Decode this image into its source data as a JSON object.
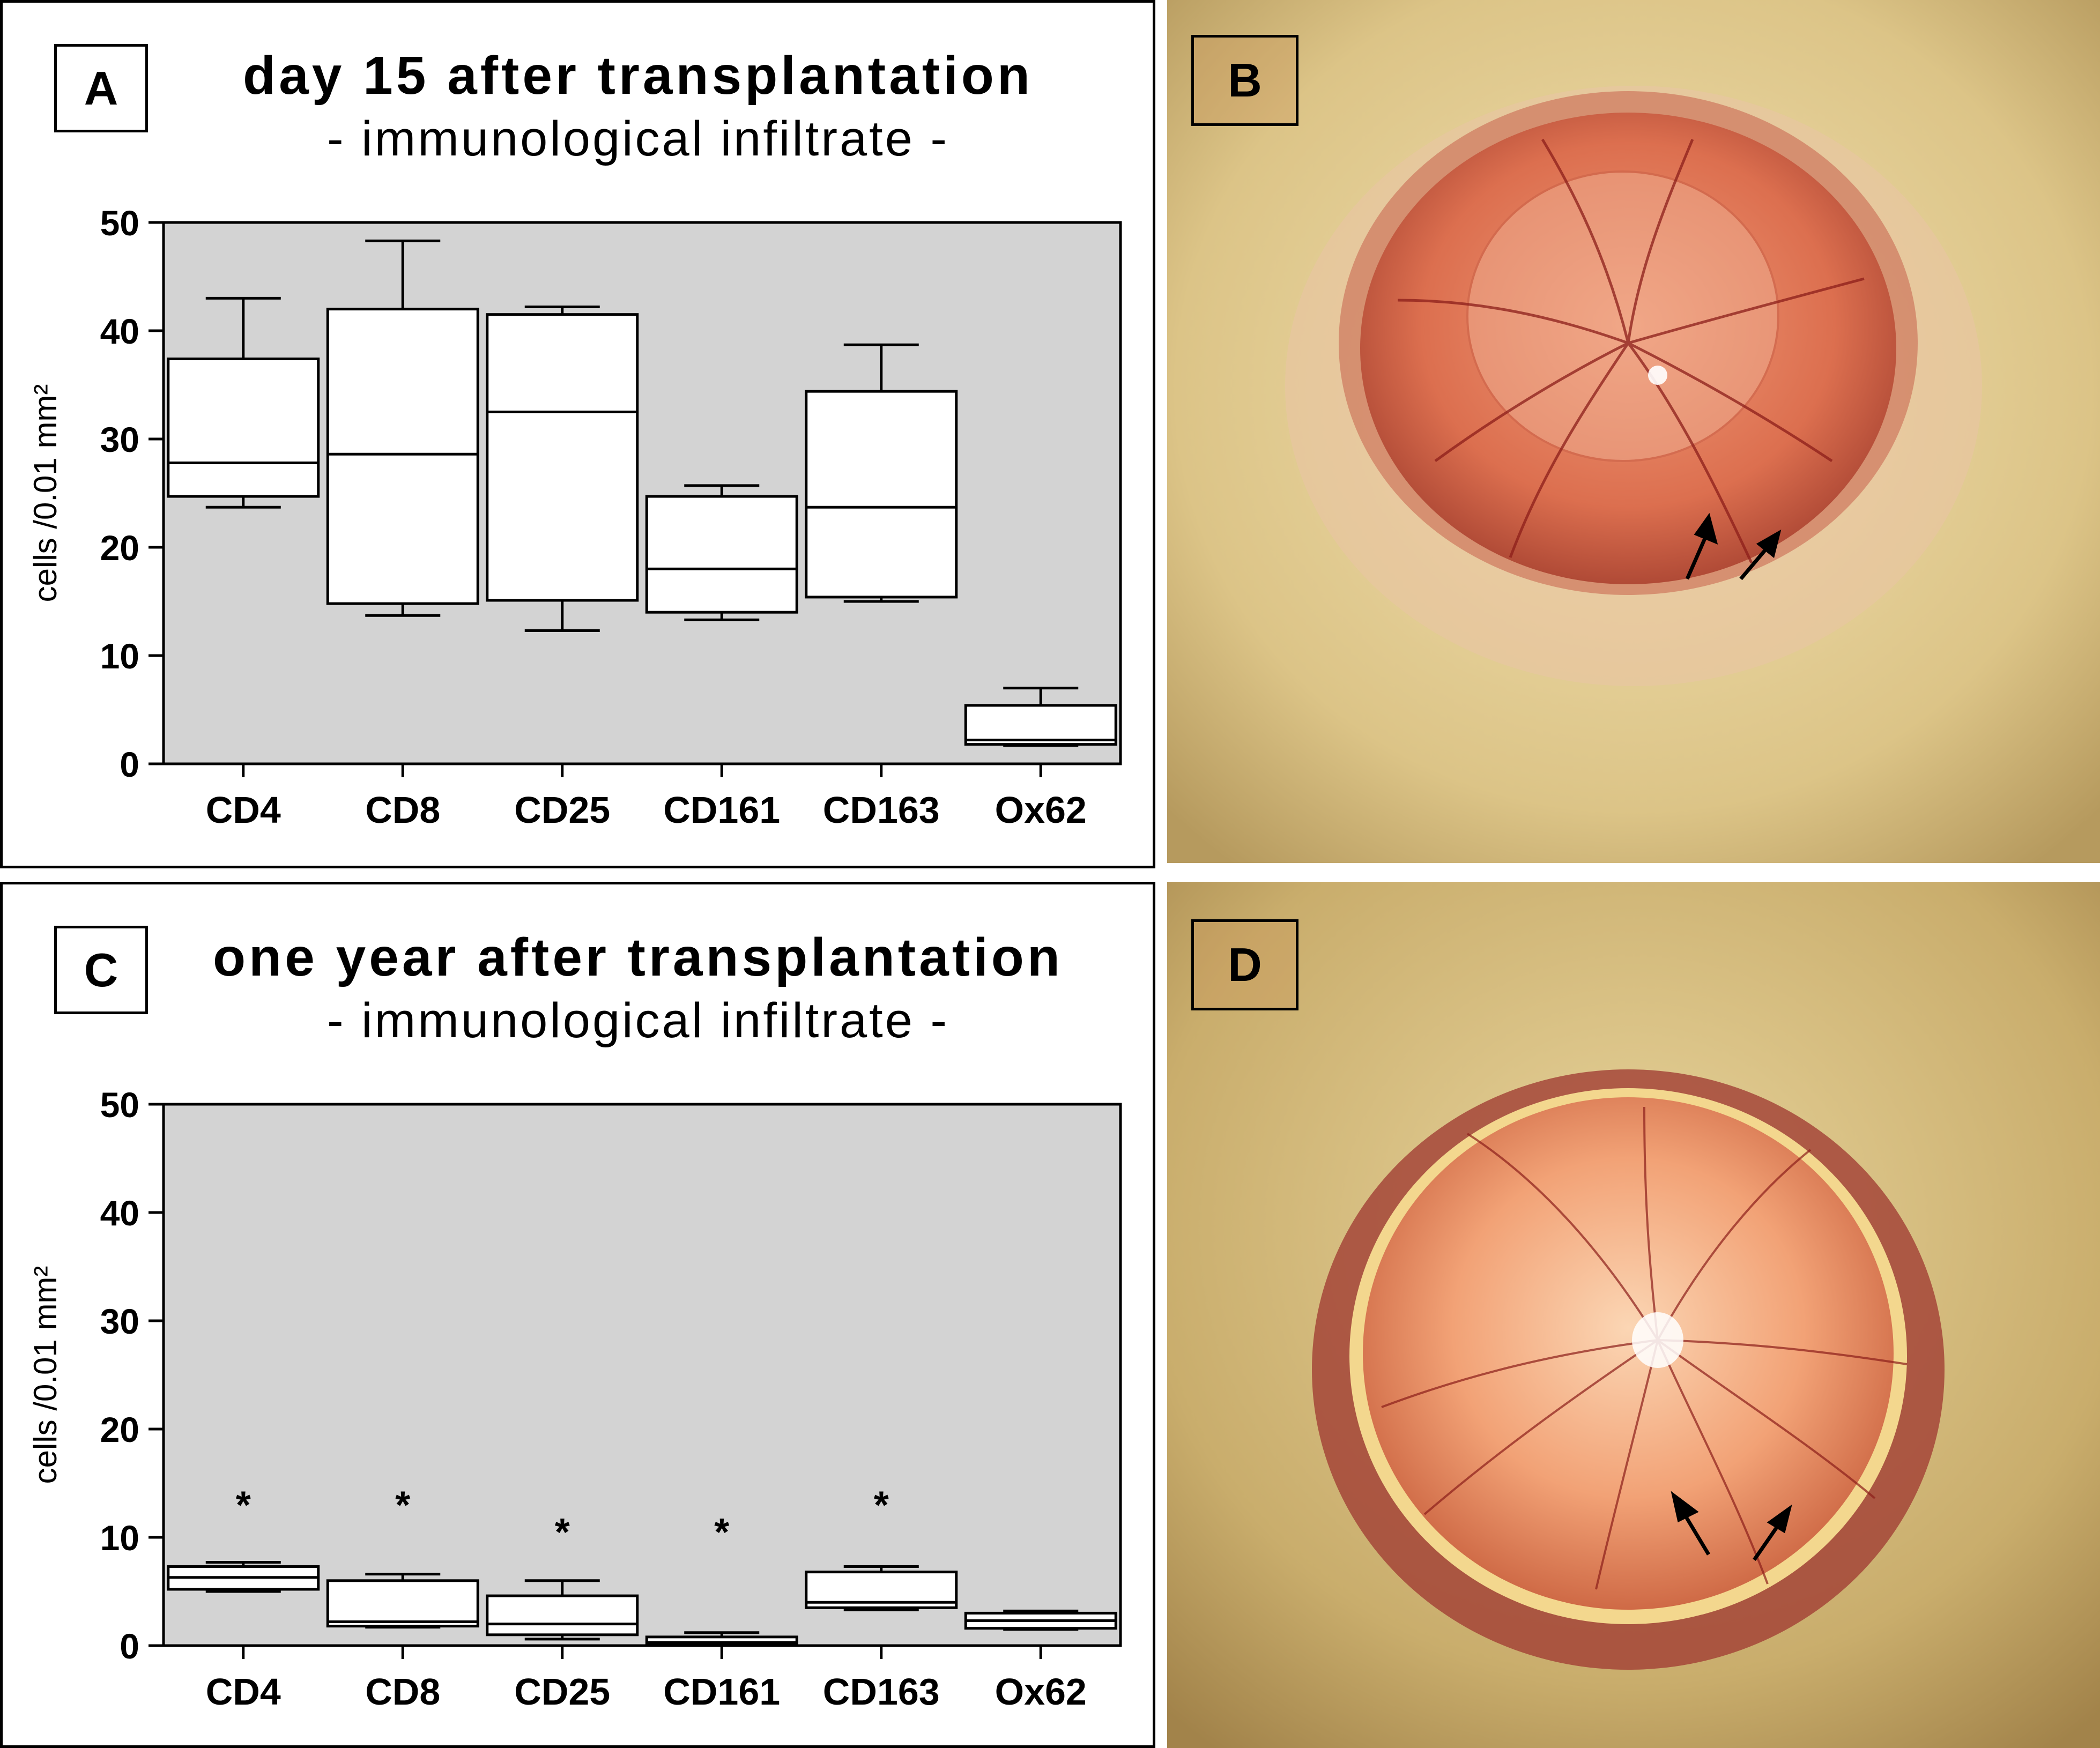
{
  "panels": {
    "a": {
      "letter": "A",
      "title": "day 15 after transplantation",
      "subtitle": "- immunological infiltrate -"
    },
    "b": {
      "letter": "B"
    },
    "c": {
      "letter": "C",
      "title": "one year after transplantation",
      "subtitle": "- immunological infiltrate -"
    },
    "d": {
      "letter": "D"
    }
  },
  "colors": {
    "plot_background": "#d3d3d3",
    "box_fill": "#ffffff",
    "ink": "#000000",
    "skin": "#e7d39a",
    "iris": "#e0785a",
    "vessel": "#8c1e1a"
  },
  "chart_data": [
    {
      "type": "box",
      "title": "day 15 after transplantation",
      "subtitle": "- immunological infiltrate -",
      "ylabel": "cells /0.01 mm²",
      "xlabel": "",
      "ylim": [
        0,
        50
      ],
      "yticks": [
        0,
        10,
        20,
        30,
        40,
        50
      ],
      "grid": false,
      "categories": [
        "CD4",
        "CD8",
        "CD25",
        "CD161",
        "CD163",
        "Ox62"
      ],
      "boxes": [
        {
          "min": 23.7,
          "q1": 24.7,
          "median": 27.8,
          "q3": 37.4,
          "max": 43.0
        },
        {
          "min": 13.7,
          "q1": 14.8,
          "median": 28.6,
          "q3": 42.0,
          "max": 48.3
        },
        {
          "min": 12.3,
          "q1": 15.1,
          "median": 32.5,
          "q3": 41.5,
          "max": 42.2
        },
        {
          "min": 13.3,
          "q1": 14.0,
          "median": 18.0,
          "q3": 24.7,
          "max": 25.7
        },
        {
          "min": 15.0,
          "q1": 15.4,
          "median": 23.7,
          "q3": 34.4,
          "max": 38.7
        },
        {
          "min": 1.7,
          "q1": 1.8,
          "median": 2.2,
          "q3": 5.4,
          "max": 7.0
        }
      ],
      "annotations": [
        "",
        "",
        "",
        "",
        "",
        ""
      ]
    },
    {
      "type": "box",
      "title": "one year after transplantation",
      "subtitle": "- immunological infiltrate -",
      "ylabel": "cells /0.01 mm²",
      "xlabel": "",
      "ylim": [
        0,
        50
      ],
      "yticks": [
        0,
        10,
        20,
        30,
        40,
        50
      ],
      "grid": false,
      "categories": [
        "CD4",
        "CD8",
        "CD25",
        "CD161",
        "CD163",
        "Ox62"
      ],
      "boxes": [
        {
          "min": 5.0,
          "q1": 5.2,
          "median": 6.3,
          "q3": 7.3,
          "max": 7.7
        },
        {
          "min": 1.7,
          "q1": 1.8,
          "median": 2.2,
          "q3": 6.0,
          "max": 6.6
        },
        {
          "min": 0.6,
          "q1": 1.0,
          "median": 2.0,
          "q3": 4.6,
          "max": 6.0
        },
        {
          "min": 0.0,
          "q1": 0.1,
          "median": 0.3,
          "q3": 0.8,
          "max": 1.2
        },
        {
          "min": 3.3,
          "q1": 3.5,
          "median": 4.0,
          "q3": 6.8,
          "max": 7.3
        },
        {
          "min": 1.5,
          "q1": 1.6,
          "median": 2.3,
          "q3": 3.0,
          "max": 3.2
        }
      ],
      "annotations": [
        "*",
        "*",
        "*",
        "*",
        "*",
        ""
      ],
      "annotation_y": [
        13.5,
        13.5,
        11.0,
        11.0,
        13.5,
        0
      ]
    }
  ]
}
